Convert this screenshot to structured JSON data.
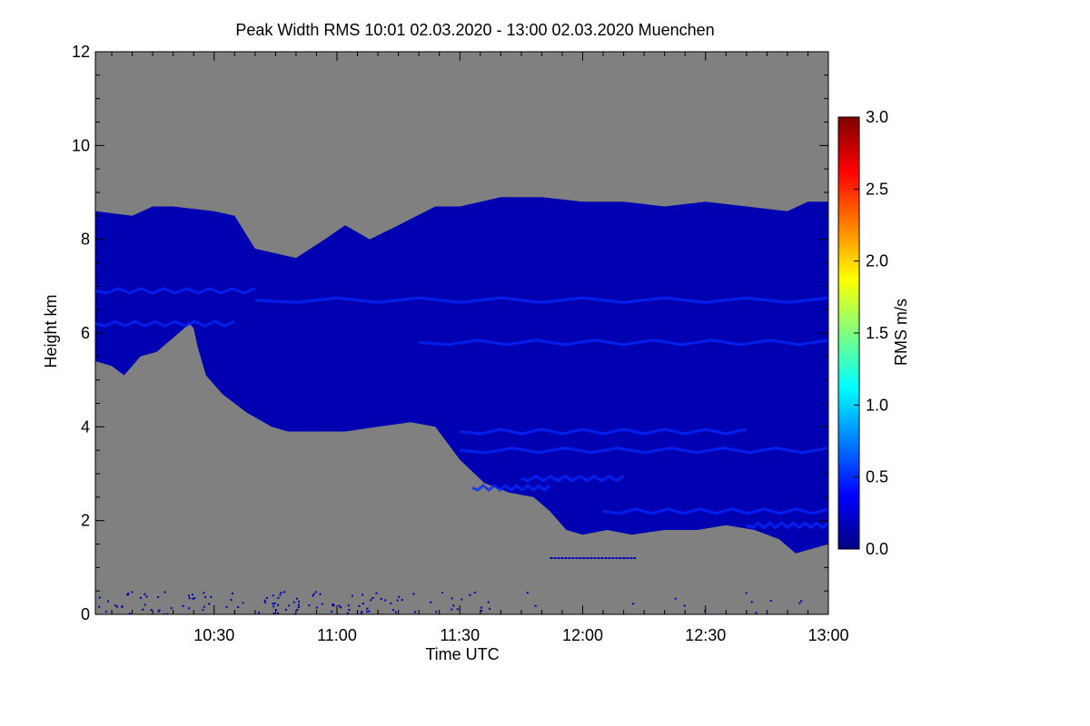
{
  "chart_data": {
    "type": "heatmap",
    "title": "Peak Width RMS   10:01 02.03.2020 - 13:00 02.03.2020 Muenchen",
    "xlabel": "Time UTC",
    "ylabel": "Height km",
    "xlim_minutes_utc": [
      601,
      780
    ],
    "ylim": [
      0,
      12
    ],
    "x_ticks": [
      {
        "minute": 630,
        "label": "10:30"
      },
      {
        "minute": 660,
        "label": "11:00"
      },
      {
        "minute": 690,
        "label": "11:30"
      },
      {
        "minute": 720,
        "label": "12:00"
      },
      {
        "minute": 750,
        "label": "12:30"
      },
      {
        "minute": 780,
        "label": "13:00"
      }
    ],
    "y_ticks": [
      {
        "value": 0,
        "label": "0"
      },
      {
        "value": 2,
        "label": "2"
      },
      {
        "value": 4,
        "label": "4"
      },
      {
        "value": 6,
        "label": "6"
      },
      {
        "value": 8,
        "label": "8"
      },
      {
        "value": 10,
        "label": "10"
      },
      {
        "value": 12,
        "label": "12"
      }
    ],
    "colorbar": {
      "label": "RMS m/s",
      "range": [
        0,
        3.0
      ],
      "ticks": [
        {
          "value": 0.0,
          "label": "0.0"
        },
        {
          "value": 0.5,
          "label": "0.5"
        },
        {
          "value": 1.0,
          "label": "1.0"
        },
        {
          "value": 1.5,
          "label": "1.5"
        },
        {
          "value": 2.0,
          "label": "2.0"
        },
        {
          "value": 2.5,
          "label": "2.5"
        },
        {
          "value": 3.0,
          "label": "3.0"
        }
      ],
      "colors": [
        "#00007f",
        "#0000ff",
        "#007fff",
        "#00ffff",
        "#7fff7f",
        "#ffff00",
        "#ff7f00",
        "#ff0000",
        "#7f0000"
      ]
    },
    "no_data_color": "#808080",
    "echo_region": {
      "typical_rms": 0.15,
      "enhanced_rms": 0.5,
      "cloud_top_km": [
        [
          601,
          8.6
        ],
        [
          610,
          8.5
        ],
        [
          615,
          8.7
        ],
        [
          620,
          8.7
        ],
        [
          630,
          8.6
        ],
        [
          635,
          8.5
        ],
        [
          640,
          7.8
        ],
        [
          650,
          7.6
        ],
        [
          657,
          8.0
        ],
        [
          662,
          8.3
        ],
        [
          668,
          8.0
        ],
        [
          675,
          8.3
        ],
        [
          684,
          8.7
        ],
        [
          690,
          8.7
        ],
        [
          700,
          8.9
        ],
        [
          710,
          8.9
        ],
        [
          720,
          8.8
        ],
        [
          730,
          8.8
        ],
        [
          740,
          8.7
        ],
        [
          750,
          8.8
        ],
        [
          760,
          8.7
        ],
        [
          770,
          8.6
        ],
        [
          775,
          8.8
        ],
        [
          780,
          8.8
        ]
      ],
      "cloud_base_km": [
        [
          601,
          5.4
        ],
        [
          605,
          5.3
        ],
        [
          608,
          5.1
        ],
        [
          612,
          5.5
        ],
        [
          616,
          5.6
        ],
        [
          620,
          5.9
        ],
        [
          624,
          6.2
        ],
        [
          625,
          6.1
        ],
        [
          626,
          5.7
        ],
        [
          628,
          5.1
        ],
        [
          632,
          4.7
        ],
        [
          638,
          4.3
        ],
        [
          644,
          4.0
        ],
        [
          648,
          3.9
        ],
        [
          655,
          3.9
        ],
        [
          662,
          3.9
        ],
        [
          670,
          4.0
        ],
        [
          678,
          4.1
        ],
        [
          684,
          4.0
        ],
        [
          690,
          3.3
        ],
        [
          696,
          2.8
        ],
        [
          702,
          2.6
        ],
        [
          708,
          2.5
        ],
        [
          712,
          2.2
        ],
        [
          716,
          1.8
        ],
        [
          720,
          1.7
        ],
        [
          726,
          1.8
        ],
        [
          732,
          1.7
        ],
        [
          740,
          1.8
        ],
        [
          748,
          1.8
        ],
        [
          755,
          1.9
        ],
        [
          762,
          1.8
        ],
        [
          768,
          1.6
        ],
        [
          772,
          1.3
        ],
        [
          776,
          1.4
        ],
        [
          780,
          1.5
        ]
      ],
      "enhanced_bands": [
        {
          "time_range": [
            693,
            712
          ],
          "height_km": 2.7
        },
        {
          "time_range": [
            705,
            730
          ],
          "height_km": 2.9
        },
        {
          "time_range": [
            725,
            780
          ],
          "height_km": 2.2
        },
        {
          "time_range": [
            760,
            780
          ],
          "height_km": 1.9
        },
        {
          "time_range": [
            690,
            760
          ],
          "height_km": 3.9
        },
        {
          "time_range": [
            690,
            780
          ],
          "height_km": 3.5
        },
        {
          "time_range": [
            601,
            640
          ],
          "height_km": 6.9
        },
        {
          "time_range": [
            601,
            635
          ],
          "height_km": 6.2
        },
        {
          "time_range": [
            640,
            780
          ],
          "height_km": 6.7
        },
        {
          "time_range": [
            680,
            780
          ],
          "height_km": 5.8
        }
      ]
    },
    "ground_clutter": {
      "height_range_km": [
        0.0,
        0.5
      ],
      "time_range": [
        601,
        780
      ],
      "line_segment": {
        "time_range": [
          712,
          733
        ],
        "height_km": 1.2
      }
    }
  }
}
